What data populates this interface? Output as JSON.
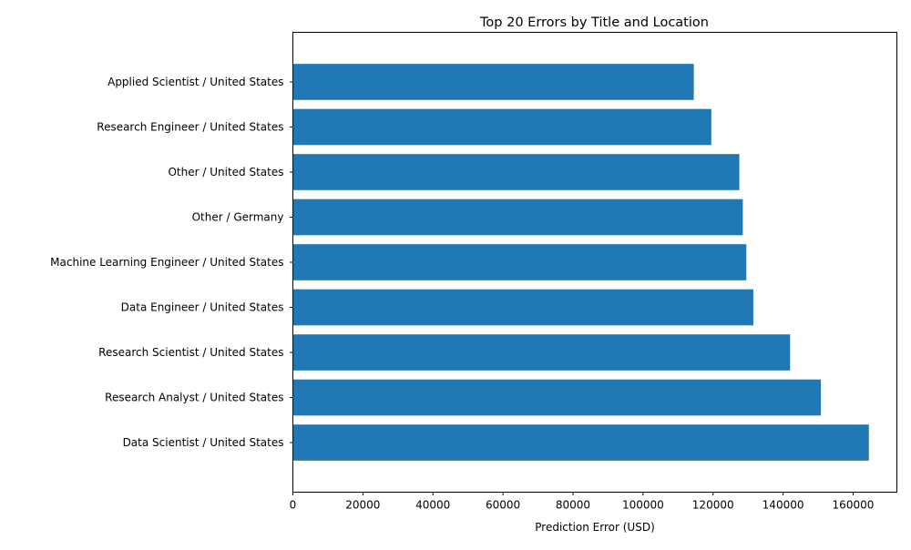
{
  "chart_data": {
    "type": "bar",
    "orientation": "horizontal",
    "title": "Top 20 Errors by Title and Location",
    "xlabel": "Prediction Error (USD)",
    "ylabel": "",
    "xlim": [
      0,
      172500
    ],
    "xticks": [
      0,
      20000,
      40000,
      60000,
      80000,
      100000,
      120000,
      140000,
      160000
    ],
    "xtick_labels": [
      "0",
      "20000",
      "40000",
      "60000",
      "80000",
      "100000",
      "120000",
      "140000",
      "160000"
    ],
    "bar_color": "#1f77b4",
    "grid": false,
    "categories": [
      "Applied Scientist / United States",
      "Research Engineer / United States",
      "Other / United States",
      "Other / Germany",
      "Machine Learning Engineer / United States",
      "Data Engineer / United States",
      "Research Scientist / United States",
      "Research Analyst / United States",
      "Data Scientist / United States"
    ],
    "values": [
      114500,
      119500,
      127500,
      128500,
      129500,
      131500,
      142000,
      150800,
      164500
    ]
  }
}
